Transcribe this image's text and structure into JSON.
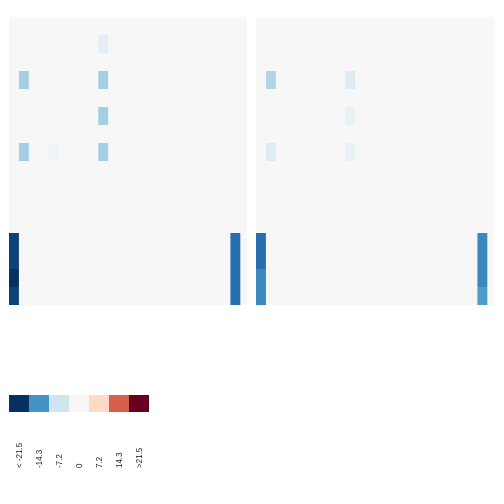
{
  "chart_data": {
    "type": "heatmap",
    "panels": [
      {
        "rows": [
          [
            0,
            0,
            0,
            0,
            0,
            0,
            0,
            0,
            0,
            0,
            0,
            0,
            0,
            0,
            0,
            0,
            0,
            0,
            0,
            0,
            0,
            0,
            0,
            0
          ],
          [
            0,
            0,
            0,
            0,
            0,
            0,
            0,
            0,
            0,
            0,
            0,
            0,
            0,
            0,
            0,
            0,
            0,
            0,
            0,
            0,
            0,
            0,
            0,
            0
          ],
          [
            0,
            0,
            0,
            0,
            0,
            0,
            0,
            0,
            0,
            0,
            0,
            0,
            0,
            0,
            0,
            0,
            0,
            0,
            0,
            0,
            0,
            0,
            0,
            0
          ],
          [
            0,
            0,
            0,
            0,
            0,
            0,
            0,
            0,
            0,
            0,
            0,
            0,
            0,
            0,
            0,
            0,
            0,
            0,
            0,
            0,
            0,
            0,
            0,
            0
          ],
          [
            0,
            0,
            0,
            0,
            0,
            0,
            0,
            0,
            0,
            0,
            0,
            0,
            0,
            0,
            0,
            0,
            0,
            0,
            0,
            0,
            0,
            0,
            0,
            0
          ],
          [
            -26,
            0,
            0,
            0,
            0,
            0,
            0,
            0,
            0,
            0,
            0,
            0,
            0,
            0,
            0,
            0,
            0,
            0,
            0,
            0,
            -20,
            0,
            0,
            0
          ],
          [
            -26,
            0,
            0,
            0,
            0,
            0,
            0,
            0,
            0,
            0,
            0,
            0,
            0,
            0,
            0,
            0,
            0,
            0,
            0,
            0,
            -20,
            0,
            0,
            0
          ],
          [
            -28,
            0,
            0,
            0,
            0,
            0,
            0,
            0,
            0,
            0,
            0,
            0,
            0,
            0,
            0,
            0,
            0,
            0,
            0,
            0,
            -20,
            0,
            0,
            0
          ],
          [
            -26,
            0,
            0,
            0,
            0,
            0,
            0,
            0,
            0,
            0,
            0,
            0,
            0,
            0,
            0,
            0,
            0,
            0,
            0,
            0,
            -20,
            0,
            0,
            0
          ]
        ],
        "sparse": [
          {
            "row": 0,
            "col": 9,
            "value": -1.5
          },
          {
            "row": 2,
            "col": 1,
            "value": -6
          },
          {
            "row": 2,
            "col": 9,
            "value": -6
          },
          {
            "row": 4,
            "col": 9,
            "value": -6
          },
          {
            "row": 6,
            "col": 1,
            "value": -6
          },
          {
            "row": 6,
            "col": 4,
            "value": -0.5
          },
          {
            "row": 6,
            "col": 9,
            "value": -6
          }
        ],
        "overlay_rows_start": 6,
        "n_rows": 12,
        "n_cols": 24
      },
      {
        "rows": [
          [
            0,
            0,
            0,
            0,
            0,
            0,
            0,
            0,
            0,
            0,
            0,
            0,
            0,
            0,
            0,
            0,
            0,
            0,
            0,
            0,
            0,
            0,
            0,
            0
          ],
          [
            0,
            0,
            0,
            0,
            0,
            0,
            0,
            0,
            0,
            0,
            0,
            0,
            0,
            0,
            0,
            0,
            0,
            0,
            0,
            0,
            0,
            0,
            0,
            0
          ],
          [
            0,
            0,
            0,
            0,
            0,
            0,
            0,
            0,
            0,
            0,
            0,
            0,
            0,
            0,
            0,
            0,
            0,
            0,
            0,
            0,
            0,
            0,
            0,
            0
          ],
          [
            0,
            0,
            0,
            0,
            0,
            0,
            0,
            0,
            0,
            0,
            0,
            0,
            0,
            0,
            0,
            0,
            0,
            0,
            0,
            0,
            0,
            0,
            0,
            0
          ],
          [
            0,
            0,
            0,
            0,
            0,
            0,
            0,
            0,
            0,
            0,
            0,
            0,
            0,
            0,
            0,
            0,
            0,
            0,
            0,
            0,
            0,
            0,
            0,
            0
          ],
          [
            -20,
            0,
            0,
            0,
            0,
            0,
            0,
            0,
            0,
            0,
            0,
            0,
            0,
            0,
            0,
            0,
            0,
            0,
            0,
            0,
            -16,
            0,
            0,
            0
          ],
          [
            -20,
            0,
            0,
            0,
            0,
            0,
            0,
            0,
            0,
            0,
            0,
            0,
            0,
            0,
            0,
            0,
            0,
            0,
            0,
            0,
            -16,
            0,
            0,
            0
          ],
          [
            -16,
            0,
            0,
            0,
            0,
            0,
            0,
            0,
            0,
            0,
            0,
            0,
            0,
            0,
            0,
            0,
            0,
            0,
            0,
            0,
            -16,
            0,
            0,
            0
          ],
          [
            -16,
            0,
            0,
            0,
            0,
            0,
            0,
            0,
            0,
            0,
            0,
            0,
            0,
            0,
            0,
            0,
            0,
            0,
            0,
            0,
            -13,
            0,
            0,
            0
          ]
        ],
        "sparse": [
          {
            "row": 2,
            "col": 1,
            "value": -5
          },
          {
            "row": 2,
            "col": 9,
            "value": -2
          },
          {
            "row": 4,
            "col": 9,
            "value": -1
          },
          {
            "row": 6,
            "col": 1,
            "value": -2
          },
          {
            "row": 6,
            "col": 9,
            "value": -1
          }
        ],
        "overlay_rows_start": 6,
        "n_rows": 12,
        "n_cols": 24
      }
    ],
    "legend": {
      "colors": [
        "#053061",
        "#4393c3",
        "#d1e5f0",
        "#f7f7f7",
        "#fddbc7",
        "#d6604d",
        "#67001f"
      ],
      "labels": [
        "< -21.5",
        "-14.3",
        "-7.2",
        "0",
        "7.2",
        "14.3",
        ">21.5"
      ]
    },
    "scale": {
      "breaks": [
        -21.5,
        -14.3,
        -7.2,
        0,
        7.2,
        14.3,
        21.5
      ]
    },
    "background_color": "#f7f7f7"
  }
}
